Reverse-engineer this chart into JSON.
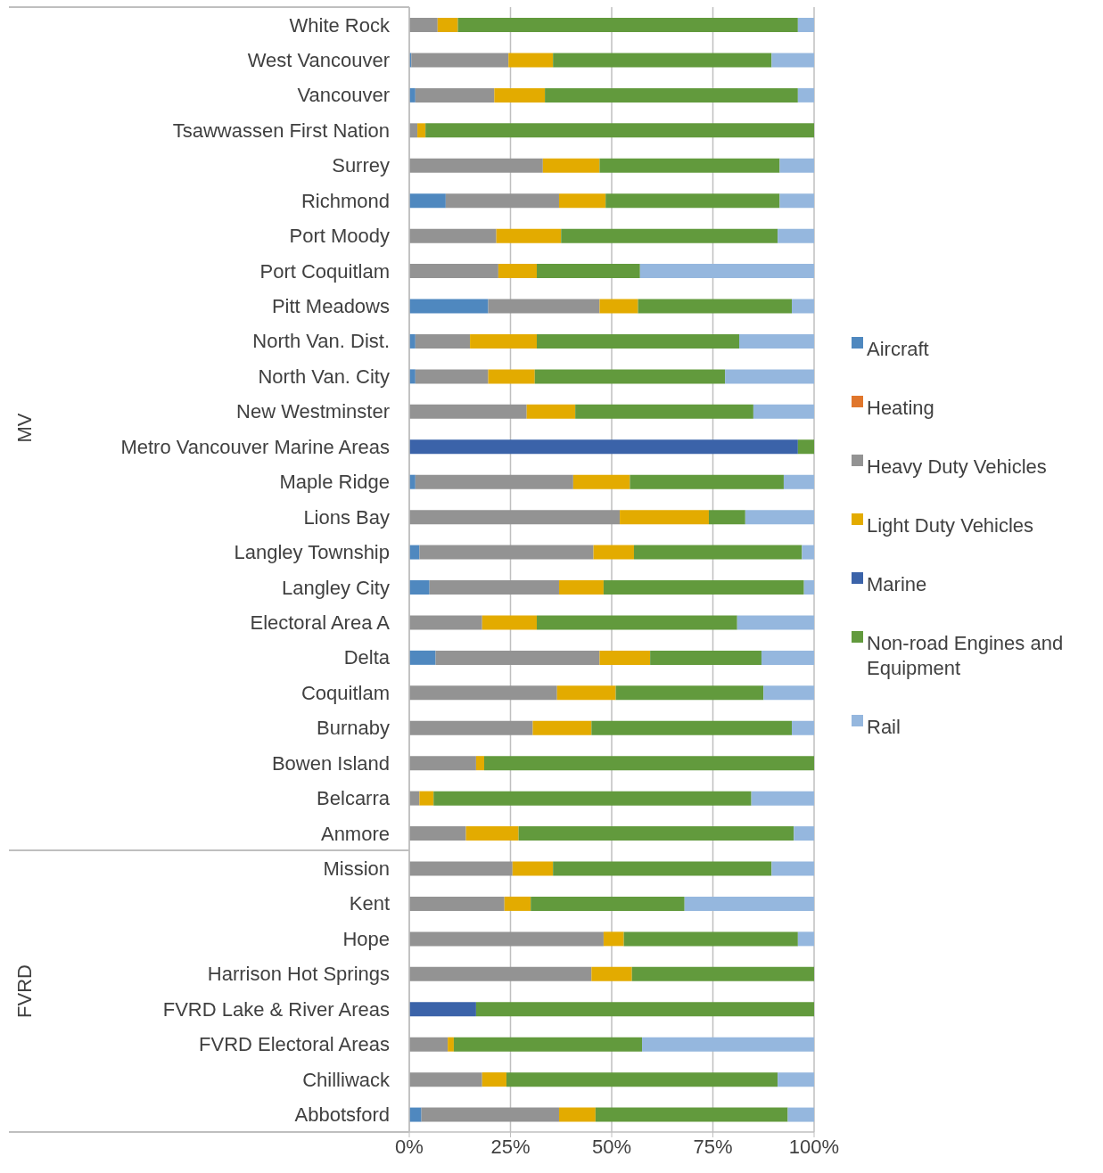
{
  "chart_data": {
    "type": "bar",
    "orientation": "horizontal",
    "stacked": true,
    "categories": [
      "White Rock",
      "West Vancouver",
      "Vancouver",
      "Tsawwassen First Nation",
      "Surrey",
      "Richmond",
      "Port Moody",
      "Port Coquitlam",
      "Pitt Meadows",
      "North Van. Dist.",
      "North Van. City",
      "New Westminster",
      "Metro Vancouver Marine Areas",
      "Maple Ridge",
      "Lions Bay",
      "Langley Township",
      "Langley City",
      "Electoral Area A",
      "Delta",
      "Coquitlam",
      "Burnaby",
      "Bowen Island",
      "Belcarra",
      "Anmore",
      "Mission",
      "Kent",
      "Hope",
      "Harrison Hot Springs",
      "FVRD Lake & River Areas",
      "FVRD Electoral Areas",
      "Chilliwack",
      "Abbotsford"
    ],
    "series": [
      {
        "name": "Aircraft",
        "color": "#4f88bf",
        "values": [
          0,
          0.5,
          1.5,
          0,
          0,
          9,
          0,
          0,
          19.5,
          1.5,
          1.5,
          0,
          0,
          1.5,
          0,
          2.5,
          5,
          0,
          6.5,
          0,
          0,
          0,
          0,
          0,
          0,
          0,
          0,
          0,
          0,
          0,
          0,
          3
        ]
      },
      {
        "name": "Heating",
        "color": "#e0762c",
        "values": [
          0,
          0,
          0,
          0,
          0,
          0,
          0,
          0,
          0,
          0,
          0,
          0,
          0,
          0,
          0,
          0,
          0,
          0,
          0,
          0,
          0,
          0,
          0,
          0,
          0,
          0,
          0,
          0,
          0,
          0,
          0,
          0
        ]
      },
      {
        "name": "Heavy Duty Vehicles",
        "color": "#939393",
        "values": [
          7,
          24,
          19.5,
          2,
          33,
          28,
          21.5,
          22,
          27.5,
          13.5,
          18,
          29,
          0,
          39,
          52,
          43,
          32,
          18,
          40.5,
          36.5,
          30.5,
          16.5,
          2.5,
          14,
          25.5,
          23.5,
          48,
          45,
          0,
          9.5,
          18,
          34
        ]
      },
      {
        "name": "Light Duty Vehicles",
        "color": "#e3ab00",
        "values": [
          5,
          11,
          12.5,
          2,
          14,
          11.5,
          16,
          9.5,
          9.5,
          16.5,
          11.5,
          12,
          0,
          14,
          22,
          10,
          11,
          13.5,
          12.5,
          14.5,
          14.5,
          2,
          3.5,
          13,
          10,
          6.5,
          5,
          10,
          0,
          1.5,
          6,
          9
        ]
      },
      {
        "name": "Marine",
        "color": "#3b63a9",
        "values": [
          0,
          0,
          0,
          0,
          0,
          0,
          0,
          0,
          0,
          0,
          0,
          0,
          96,
          0,
          0,
          0,
          0,
          0,
          0,
          0,
          0,
          0,
          0,
          0,
          0,
          0,
          0,
          0,
          16.5,
          0,
          0,
          0
        ]
      },
      {
        "name": "Non-road Engines and Equipment",
        "color": "#629a3d",
        "values": [
          84,
          54,
          62.5,
          96,
          44.5,
          43,
          53.5,
          25.5,
          38,
          50,
          47,
          44,
          4,
          38,
          9,
          41.5,
          49.5,
          49.5,
          27.5,
          36.5,
          49.5,
          81.5,
          78.5,
          68,
          54,
          38,
          43,
          45,
          83.5,
          46.5,
          67,
          47.5
        ]
      },
      {
        "name": "Rail",
        "color": "#95b7de",
        "values": [
          4,
          10.5,
          4,
          0,
          8.5,
          8.5,
          9,
          43,
          5.5,
          18.5,
          22,
          15,
          0,
          7.5,
          17,
          3,
          2.5,
          19,
          13,
          12.5,
          5.5,
          0,
          15.5,
          5,
          10.5,
          32,
          4,
          0,
          0,
          42.5,
          9,
          6.5
        ]
      }
    ],
    "xlim": [
      0,
      100
    ],
    "xticks": [
      {
        "value": 0,
        "label": "0%"
      },
      {
        "value": 25,
        "label": "25%"
      },
      {
        "value": 50,
        "label": "50%"
      },
      {
        "value": 75,
        "label": "75%"
      },
      {
        "value": 100,
        "label": "100%"
      }
    ],
    "grid": "x",
    "legend": "right",
    "annotations": [
      "MV",
      "FVRD"
    ]
  }
}
